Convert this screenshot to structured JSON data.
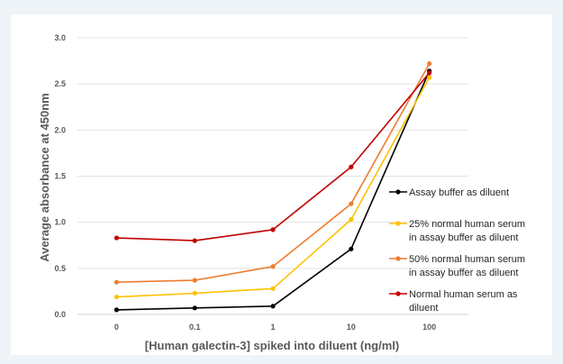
{
  "chart_data": {
    "type": "line",
    "title": "",
    "xlabel": "[Human galectin-3] spiked into diluent (ng/ml)",
    "ylabel": "Average absorbance at 450nm",
    "categories": [
      "0",
      "0.1",
      "1",
      "10",
      "100"
    ],
    "ylim": [
      0,
      3.0
    ],
    "y_ticks": [
      "0.0",
      "0.5",
      "1.0",
      "1.5",
      "2.0",
      "2.5",
      "3.0"
    ],
    "grid": true,
    "legend_position": "right",
    "series": [
      {
        "name": "Assay buffer as diluent",
        "legend_lines": [
          "Assay buffer as diluent"
        ],
        "color": "#000000",
        "values": [
          0.05,
          0.07,
          0.09,
          0.71,
          2.64
        ]
      },
      {
        "name": "25% normal human serum in assay buffer as diluent",
        "legend_lines": [
          "25% normal human serum",
          "in assay buffer as diluent"
        ],
        "color": "#ffc000",
        "values": [
          0.19,
          0.23,
          0.28,
          1.03,
          2.57
        ]
      },
      {
        "name": "50% normal human serum in assay buffer as diluent",
        "legend_lines": [
          "50% normal human serum",
          "in assay buffer as diluent"
        ],
        "color": "#ed7d31",
        "values": [
          0.35,
          0.37,
          0.52,
          1.2,
          2.72
        ]
      },
      {
        "name": "Normal human serum as diluent",
        "legend_lines": [
          "Normal human serum as",
          "diluent"
        ],
        "color": "#c00000",
        "values": [
          0.83,
          0.8,
          0.92,
          1.6,
          2.62
        ]
      }
    ]
  }
}
